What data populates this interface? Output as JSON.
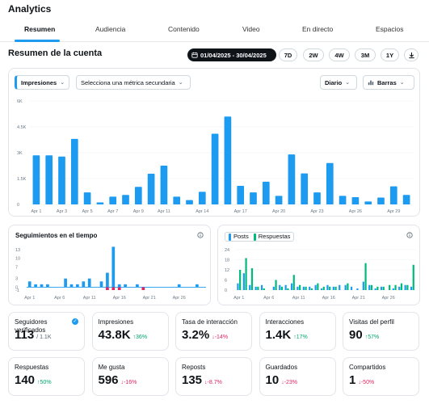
{
  "app": {
    "title": "Analytics"
  },
  "tabs": [
    {
      "label": "Resumen",
      "active": true
    },
    {
      "label": "Audiencia"
    },
    {
      "label": "Contenido"
    },
    {
      "label": "Video"
    },
    {
      "label": "En directo"
    },
    {
      "label": "Espacios"
    }
  ],
  "header": {
    "section_title": "Resumen de la cuenta",
    "date_range": "01/04/2025 - 30/04/2025",
    "ranges": [
      "7D",
      "2W",
      "4W",
      "3M",
      "1Y"
    ]
  },
  "controls": {
    "metric_primary": "Impresiones",
    "metric_secondary": "Selecciona una métrica secundaria",
    "granularity": "Diario",
    "chart_style": "Barras"
  },
  "colors": {
    "accent": "#1d9bf0",
    "green": "#00ba7c",
    "red": "#e0245e"
  },
  "chart_data": [
    {
      "type": "bar",
      "y_ticks": [
        "0",
        "1.5K",
        "3K",
        "4.5K",
        "6K"
      ],
      "ylim": [
        0,
        6000
      ],
      "x_tick_labels": [
        "Apr 1",
        "Apr 3",
        "Apr 5",
        "Apr 7",
        "Apr 9",
        "Apr 11",
        "Apr 14",
        "Apr 17",
        "Apr 20",
        "Apr 23",
        "Apr 26",
        "Apr 29"
      ],
      "x_tick_index": [
        0,
        2,
        4,
        6,
        8,
        10,
        13,
        16,
        19,
        22,
        25,
        28
      ],
      "values": [
        2850,
        2850,
        2780,
        3800,
        700,
        120,
        450,
        550,
        1020,
        1780,
        2250,
        450,
        250,
        730,
        4100,
        5100,
        1080,
        700,
        1320,
        500,
        2900,
        1800,
        700,
        2400,
        500,
        420,
        170,
        400,
        1050,
        550
      ]
    },
    {
      "type": "bar",
      "title": "Seguimientos en el tiempo",
      "y_ticks": [
        "-1",
        "0",
        "3",
        "7",
        "10",
        "13"
      ],
      "ylim": [
        -1,
        13
      ],
      "x_tick_labels": [
        "Apr 1",
        "Apr 6",
        "Apr 11",
        "Apr 16",
        "Apr 21",
        "Apr 26"
      ],
      "x_tick_index": [
        0,
        5,
        10,
        15,
        20,
        25
      ],
      "values": [
        2,
        1,
        1,
        1,
        0,
        0,
        3,
        1,
        1,
        2,
        3,
        0,
        2,
        5,
        14,
        1,
        1,
        0,
        1,
        0,
        0,
        0,
        0,
        0,
        0,
        1,
        0,
        0,
        1,
        0
      ],
      "losses": [
        0,
        0,
        0,
        0,
        0,
        0,
        0,
        0,
        0,
        0,
        0,
        0,
        0,
        -1,
        -1,
        -1,
        0,
        0,
        0,
        -1,
        0,
        0,
        0,
        0,
        0,
        0,
        0,
        0,
        0,
        0
      ]
    },
    {
      "type": "bar",
      "legend": [
        "Posts",
        "Respuestas"
      ],
      "y_ticks": [
        "0",
        "6",
        "12",
        "18",
        "24"
      ],
      "ylim": [
        0,
        24
      ],
      "x_tick_labels": [
        "Apr 1",
        "Apr 6",
        "Apr 11",
        "Apr 16",
        "Apr 21",
        "Apr 26"
      ],
      "x_tick_index": [
        0,
        5,
        10,
        15,
        20,
        25
      ],
      "series": [
        {
          "name": "Posts",
          "values": [
            4,
            10,
            3,
            2,
            3,
            0,
            2,
            3,
            3,
            4,
            2,
            2,
            2,
            3,
            1,
            3,
            2,
            3,
            3,
            2,
            1,
            5,
            3,
            1,
            2,
            0,
            1,
            2,
            3,
            2
          ]
        },
        {
          "name": "Respuestas",
          "values": [
            12,
            19,
            13,
            2,
            1,
            0,
            6,
            2,
            1,
            9,
            3,
            2,
            1,
            4,
            2,
            2,
            2,
            0,
            4,
            0,
            0,
            16,
            3,
            2,
            2,
            3,
            3,
            4,
            3,
            15
          ]
        }
      ]
    }
  ],
  "stats": [
    {
      "label": "Seguidores verificados",
      "value": "113",
      "sub": "/ 1.1K",
      "change": "",
      "dir": "",
      "info": true
    },
    {
      "label": "Impresiones",
      "value": "43.8K",
      "change": "↑36%",
      "dir": "up"
    },
    {
      "label": "Tasa de interacción",
      "value": "3.2%",
      "change": "↓-14%",
      "dir": "down"
    },
    {
      "label": "Interacciones",
      "value": "1.4K",
      "change": "↑17%",
      "dir": "up"
    },
    {
      "label": "Visitas del perfil",
      "value": "90",
      "change": "↑57%",
      "dir": "up"
    },
    {
      "label": "Respuestas",
      "value": "140",
      "change": "↑50%",
      "dir": "up"
    },
    {
      "label": "Me gusta",
      "value": "596",
      "change": "↓-16%",
      "dir": "down"
    },
    {
      "label": "Reposts",
      "value": "135",
      "change": "↓-8.7%",
      "dir": "down"
    },
    {
      "label": "Guardados",
      "value": "10",
      "change": "↓-23%",
      "dir": "down"
    },
    {
      "label": "Compartidos",
      "value": "1",
      "change": "↓-50%",
      "dir": "down"
    }
  ]
}
